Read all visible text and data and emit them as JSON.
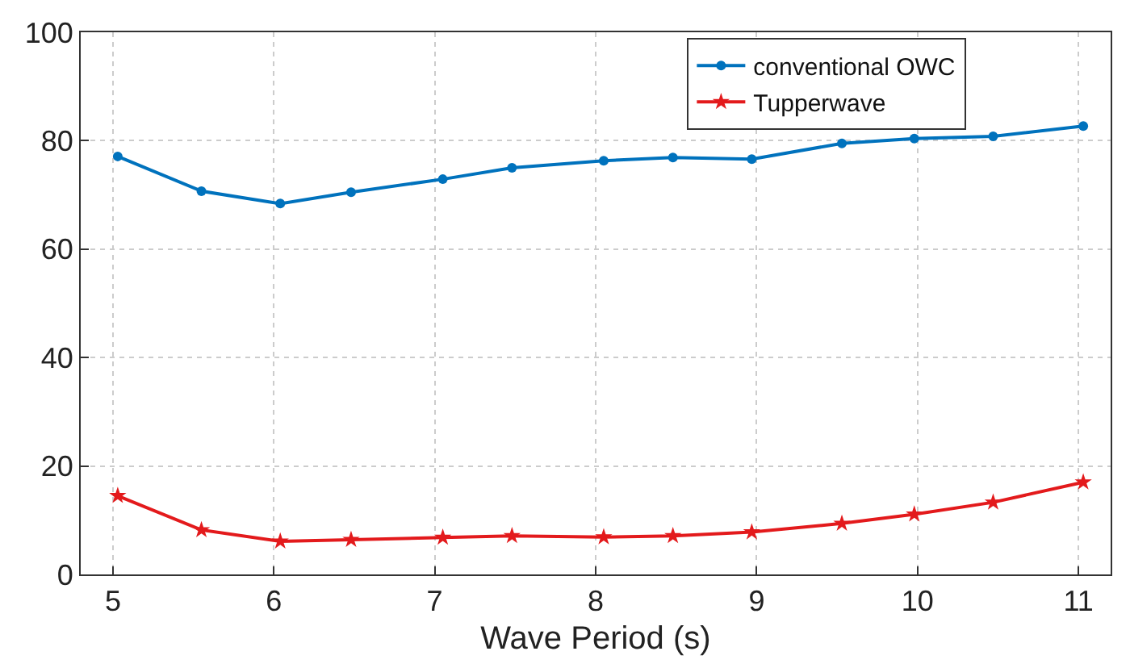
{
  "chart_data": {
    "type": "line",
    "xlabel": "Wave Period (s)",
    "x": [
      5.03,
      5.55,
      6.04,
      6.48,
      7.05,
      7.48,
      8.05,
      8.48,
      8.97,
      9.53,
      9.98,
      10.47,
      11.03
    ],
    "series": [
      {
        "name": "conventional OWC",
        "color": "#0072bd",
        "marker": "circle",
        "values": [
          77.1,
          70.7,
          68.4,
          70.5,
          72.9,
          75.0,
          76.3,
          76.9,
          76.6,
          79.5,
          80.4,
          80.8,
          82.7
        ]
      },
      {
        "name": "Tupperwave",
        "color": "#e31a1c",
        "marker": "star",
        "values": [
          14.5,
          8.2,
          6.1,
          6.4,
          6.8,
          7.1,
          6.9,
          7.1,
          7.8,
          9.4,
          11.1,
          13.3,
          17.0
        ]
      }
    ],
    "xlim": [
      4.8,
      11.2
    ],
    "xticks": [
      5,
      6,
      7,
      8,
      9,
      10,
      11
    ],
    "ylim": [
      0,
      100
    ],
    "yticks": [
      0,
      20,
      40,
      60,
      80,
      100
    ],
    "grid": true,
    "legend": "top right",
    "line_style": "solid"
  }
}
